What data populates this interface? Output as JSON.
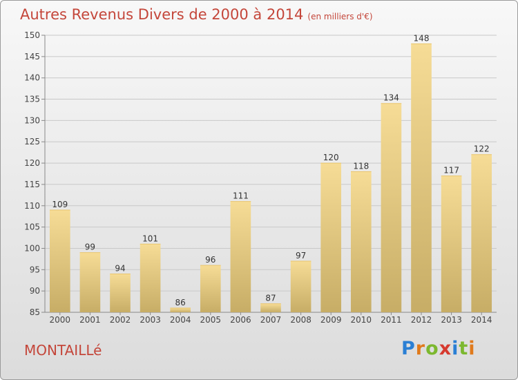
{
  "title": "Autres Revenus Divers de 2000 à 2014",
  "subtitle": "(en milliers d'€)",
  "place": "MONTAILLé",
  "brand": {
    "letters": [
      {
        "ch": "P",
        "color": "#2a7fd4"
      },
      {
        "ch": "r",
        "color": "#e07a1c"
      },
      {
        "ch": "o",
        "color": "#7cb82f"
      },
      {
        "ch": "x",
        "color": "#d63a2f"
      },
      {
        "ch": "i",
        "color": "#2a7fd4"
      },
      {
        "ch": "t",
        "color": "#7cb82f"
      },
      {
        "ch": "i",
        "color": "#e07a1c"
      }
    ]
  },
  "colors": {
    "accent": "#c4463a",
    "bar_top": "#f6dc96",
    "bar_bottom": "#c7ad66"
  },
  "chart_data": {
    "type": "bar",
    "categories": [
      "2000",
      "2001",
      "2002",
      "2003",
      "2004",
      "2005",
      "2006",
      "2007",
      "2008",
      "2009",
      "2010",
      "2011",
      "2012",
      "2013",
      "2014"
    ],
    "values": [
      109,
      99,
      94,
      101,
      86,
      96,
      111,
      87,
      97,
      120,
      118,
      134,
      148,
      117,
      122
    ],
    "ylim": [
      85,
      150
    ],
    "yticks": [
      85,
      90,
      95,
      100,
      105,
      110,
      115,
      120,
      125,
      130,
      135,
      140,
      145,
      150
    ],
    "grid": true,
    "legend": "none"
  }
}
